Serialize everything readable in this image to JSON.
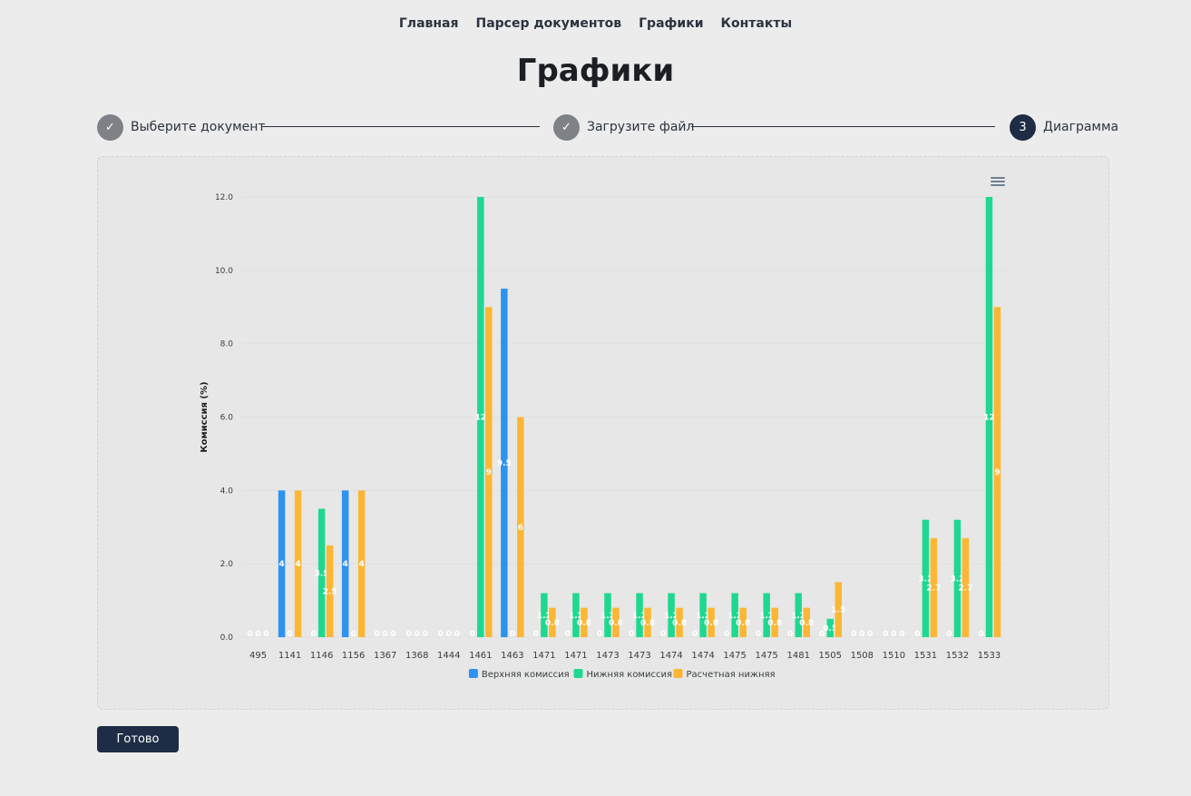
{
  "nav": {
    "items": [
      "Главная",
      "Парсер документов",
      "Графики",
      "Контакты"
    ]
  },
  "page": {
    "title": "Графики"
  },
  "stepper": {
    "steps": [
      {
        "label": "Выберите документ",
        "state": "done",
        "marker": "✓"
      },
      {
        "label": "Загрузите файл",
        "state": "done",
        "marker": "✓"
      },
      {
        "label": "Диаграмма",
        "state": "active",
        "marker": "3"
      }
    ]
  },
  "actions": {
    "done_label": "Готово"
  },
  "chart_data": {
    "type": "bar",
    "title": "",
    "xlabel": "",
    "ylabel": "Комиссия (%)",
    "ylim": [
      0,
      12
    ],
    "ytick_labels": [
      "0.0",
      "2.0",
      "4.0",
      "6.0",
      "8.0",
      "10.0",
      "12.0"
    ],
    "grid": true,
    "legend_position": "bottom",
    "categories": [
      "495",
      "1141",
      "1146",
      "1156",
      "1367",
      "1368",
      "1444",
      "1461",
      "1463",
      "1471",
      "1471",
      "1473",
      "1473",
      "1474",
      "1474",
      "1475",
      "1475",
      "1481",
      "1505",
      "1508",
      "1510",
      "1531",
      "1532",
      "1533"
    ],
    "series": [
      {
        "name": "Верхняя комиссия",
        "color": "#2e93ee",
        "values": [
          0,
          4,
          0,
          4,
          0,
          0,
          0,
          0,
          9.5,
          0,
          0,
          0,
          0,
          0,
          0,
          0,
          0,
          0,
          0,
          0,
          0,
          0,
          0,
          0
        ]
      },
      {
        "name": "Нижняя комиссия",
        "color": "#1fd88f",
        "values": [
          0,
          0,
          3.5,
          0,
          0,
          0,
          0,
          12,
          0,
          1.2,
          1.2,
          1.2,
          1.2,
          1.2,
          1.2,
          1.2,
          1.2,
          1.2,
          0.5,
          0,
          0,
          3.2,
          3.2,
          12
        ]
      },
      {
        "name": "Расчетная нижняя",
        "color": "#fbb734",
        "values": [
          0,
          4,
          2.5,
          4,
          0,
          0,
          0,
          9,
          6,
          0.8,
          0.8,
          0.8,
          0.8,
          0.8,
          0.8,
          0.8,
          0.8,
          0.8,
          1.5,
          0,
          0,
          2.7,
          2.7,
          9
        ]
      }
    ]
  }
}
